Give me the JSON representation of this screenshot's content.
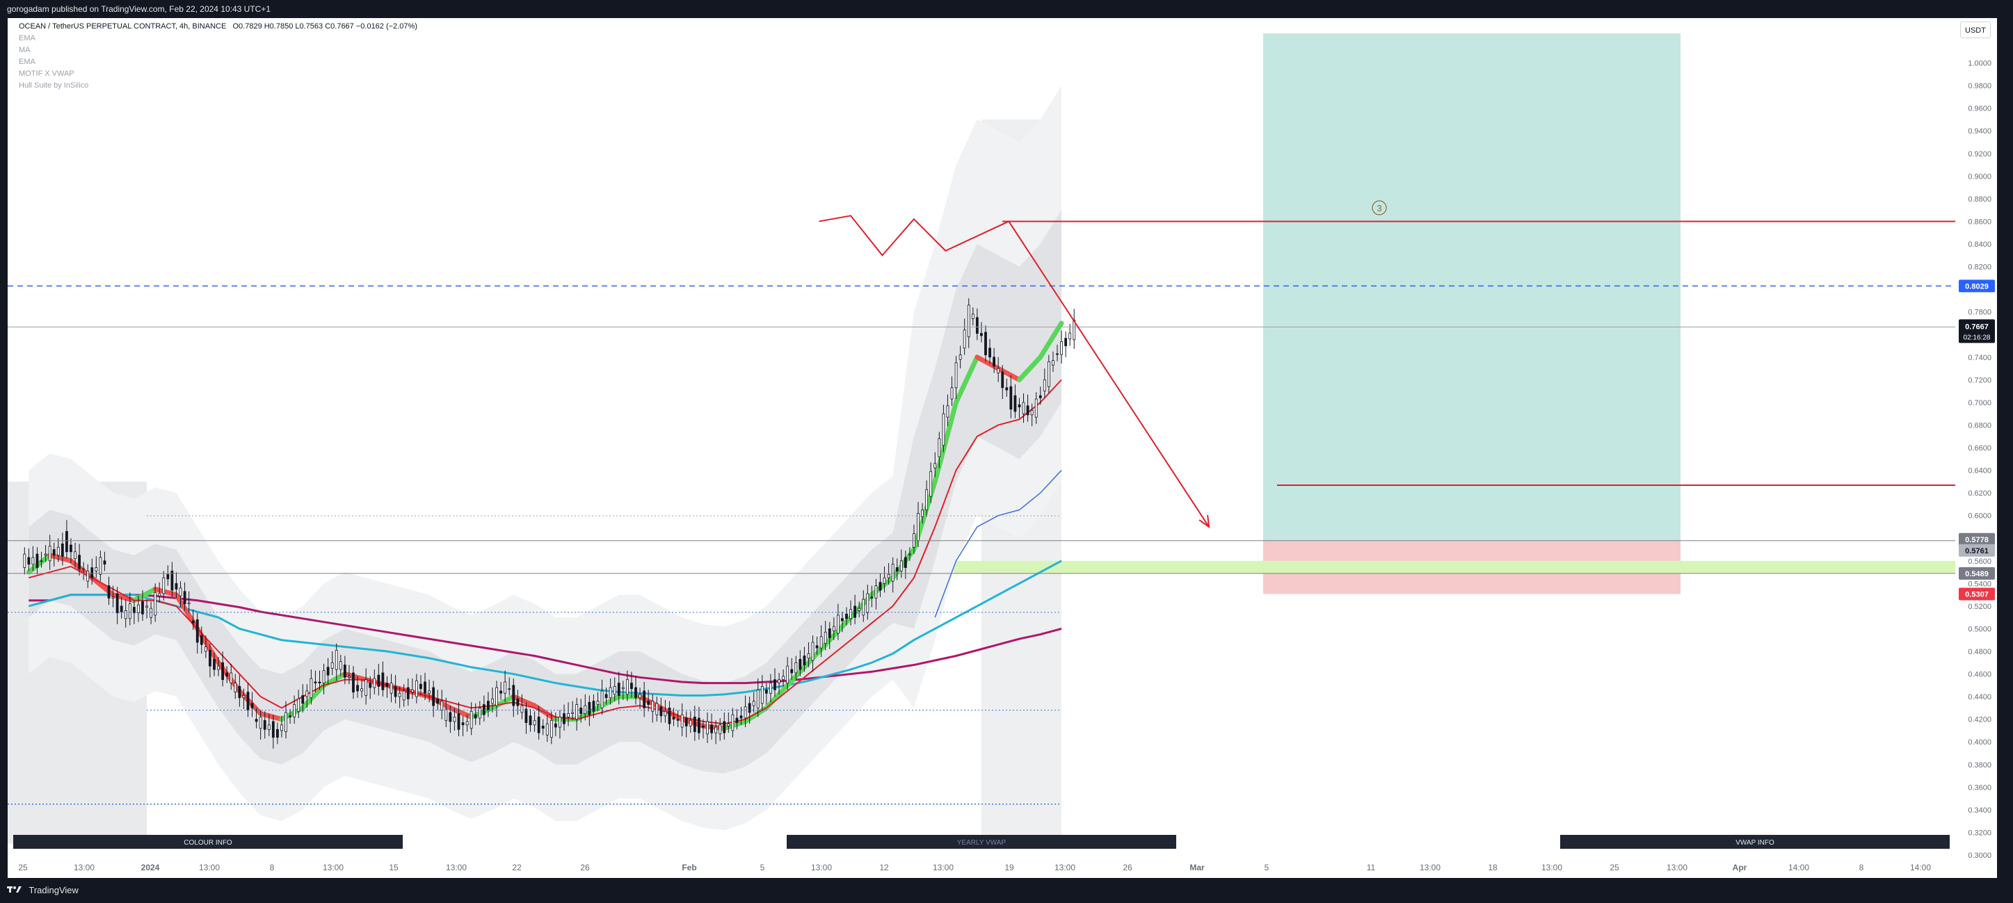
{
  "header": {
    "published": "gorogadam published on TradingView.com, Feb 22, 2024 10:43 UTC+1"
  },
  "legend": {
    "symbol": "OCEAN / TetherUS PERPETUAL CONTRACT, 4h, BINANCE",
    "ohlc": "O0.7829  H0.7850  L0.7563  C0.7667  −0.0162 (−2.07%)",
    "indicators": [
      "EMA",
      "MA",
      "EMA",
      "MOTIF X VWAP",
      "Hull Suite by InSilico"
    ]
  },
  "currency_button": "USDT",
  "footer": {
    "brand": "TradingView"
  },
  "info_bars": [
    "COLOUR INFO",
    "YEARLY VWAP",
    "VWAP INFO"
  ],
  "annotation": "3",
  "price_badges": {
    "upper_dashed": "0.8029",
    "last_price": "0.7667",
    "countdown": "02:16:28",
    "level_1": "0.5778",
    "level_2": "0.5761",
    "level_3": "0.5489",
    "stop": "0.5307"
  },
  "colors": {
    "background": "#131722",
    "up_candle": "#131722",
    "hull_bull": "#5ad65a",
    "hull_bear": "#ef5350",
    "ema_fast": "#e0202a",
    "ema_mid": "#22b4d6",
    "ema_slow": "#b0166a",
    "vwap": "#3d6fd6",
    "take_profit_zone": "#c5e7e1",
    "stop_zone": "#f6c9cb",
    "projection": "#e0202a",
    "dashed_level": "#2962ff"
  },
  "chart_data": {
    "type": "candlestick",
    "symbol": "OCEAN / TetherUS PERPETUAL CONTRACT",
    "timeframe": "4h",
    "exchange": "BINANCE",
    "y_axis": {
      "range": [
        0.3,
        1.02
      ],
      "ticks": [
        "0.3000",
        "0.3200",
        "0.3400",
        "0.3600",
        "0.3800",
        "0.4000",
        "0.4200",
        "0.4400",
        "0.4600",
        "0.4800",
        "0.5000",
        "0.5200",
        "0.5400",
        "0.5600",
        "0.5800",
        "0.6000",
        "0.6200",
        "0.6400",
        "0.6600",
        "0.6800",
        "0.7000",
        "0.7200",
        "0.7400",
        "0.7600",
        "0.7800",
        "0.8000",
        "0.8200",
        "0.8400",
        "0.8600",
        "0.8800",
        "0.9000",
        "0.9200",
        "0.9400",
        "0.9600",
        "0.9800",
        "1.0000"
      ]
    },
    "x_axis": {
      "ticks": [
        "25",
        "13:00",
        "2024",
        "13:00",
        "8",
        "13:00",
        "15",
        "13:00",
        "22",
        "26",
        "Feb",
        "5",
        "13:00",
        "12",
        "13:00",
        "19",
        "13:00",
        "26",
        "Mar",
        "5",
        "11",
        "13:00",
        "18",
        "13:00",
        "25",
        "13:00",
        "Apr",
        "14:00",
        "8",
        "14:00"
      ]
    },
    "price_path": [
      [
        0.56,
        0.56
      ],
      [
        0.565,
        0.57
      ],
      [
        0.58,
        0.55
      ],
      [
        0.545,
        0.56
      ],
      [
        0.535,
        0.51
      ],
      [
        0.515,
        0.52
      ],
      [
        0.51,
        0.55
      ],
      [
        0.545,
        0.52
      ],
      [
        0.51,
        0.47
      ],
      [
        0.47,
        0.455
      ],
      [
        0.45,
        0.43
      ],
      [
        0.42,
        0.41
      ],
      [
        0.405,
        0.43
      ],
      [
        0.43,
        0.455
      ],
      [
        0.45,
        0.475
      ],
      [
        0.47,
        0.445
      ],
      [
        0.445,
        0.455
      ],
      [
        0.455,
        0.44
      ],
      [
        0.44,
        0.45
      ],
      [
        0.45,
        0.43
      ],
      [
        0.425,
        0.415
      ],
      [
        0.415,
        0.43
      ],
      [
        0.43,
        0.45
      ],
      [
        0.45,
        0.42
      ],
      [
        0.42,
        0.41
      ],
      [
        0.41,
        0.425
      ],
      [
        0.425,
        0.43
      ],
      [
        0.43,
        0.445
      ],
      [
        0.445,
        0.45
      ],
      [
        0.445,
        0.43
      ],
      [
        0.43,
        0.42
      ],
      [
        0.42,
        0.415
      ],
      [
        0.415,
        0.41
      ],
      [
        0.41,
        0.42
      ],
      [
        0.42,
        0.44
      ],
      [
        0.44,
        0.455
      ],
      [
        0.455,
        0.47
      ],
      [
        0.47,
        0.49
      ],
      [
        0.49,
        0.51
      ],
      [
        0.51,
        0.52
      ],
      [
        0.52,
        0.545
      ],
      [
        0.545,
        0.56
      ],
      [
        0.56,
        0.62
      ],
      [
        0.62,
        0.7
      ],
      [
        0.7,
        0.78
      ],
      [
        0.78,
        0.74
      ],
      [
        0.74,
        0.7
      ],
      [
        0.7,
        0.69
      ],
      [
        0.69,
        0.74
      ],
      [
        0.74,
        0.7667
      ]
    ],
    "indicators": {
      "hull_suite": [
        0.55,
        0.565,
        0.56,
        0.545,
        0.53,
        0.525,
        0.535,
        0.53,
        0.5,
        0.47,
        0.445,
        0.425,
        0.42,
        0.43,
        0.45,
        0.46,
        0.455,
        0.45,
        0.445,
        0.44,
        0.43,
        0.422,
        0.43,
        0.44,
        0.432,
        0.42,
        0.42,
        0.43,
        0.44,
        0.44,
        0.43,
        0.42,
        0.414,
        0.412,
        0.418,
        0.43,
        0.45,
        0.47,
        0.49,
        0.51,
        0.53,
        0.545,
        0.57,
        0.63,
        0.7,
        0.74,
        0.73,
        0.72,
        0.74,
        0.77
      ],
      "ema_fast": [
        0.545,
        0.55,
        0.555,
        0.545,
        0.535,
        0.525,
        0.525,
        0.52,
        0.5,
        0.48,
        0.46,
        0.44,
        0.43,
        0.44,
        0.45,
        0.455,
        0.455,
        0.45,
        0.445,
        0.44,
        0.435,
        0.43,
        0.432,
        0.435,
        0.43,
        0.422,
        0.42,
        0.425,
        0.43,
        0.432,
        0.428,
        0.422,
        0.418,
        0.416,
        0.42,
        0.43,
        0.445,
        0.46,
        0.475,
        0.49,
        0.505,
        0.52,
        0.545,
        0.59,
        0.64,
        0.67,
        0.68,
        0.685,
        0.7,
        0.72
      ],
      "ema_mid": [
        0.52,
        0.525,
        0.53,
        0.53,
        0.53,
        0.53,
        0.525,
        0.52,
        0.515,
        0.51,
        0.5,
        0.495,
        0.49,
        0.488,
        0.486,
        0.484,
        0.482,
        0.48,
        0.477,
        0.474,
        0.47,
        0.466,
        0.463,
        0.46,
        0.456,
        0.452,
        0.449,
        0.446,
        0.444,
        0.443,
        0.442,
        0.441,
        0.441,
        0.442,
        0.444,
        0.447,
        0.45,
        0.454,
        0.459,
        0.464,
        0.47,
        0.478,
        0.49,
        0.5,
        0.51,
        0.52,
        0.53,
        0.54,
        0.55,
        0.56
      ],
      "ema_slow": [
        0.525,
        0.525,
        0.53,
        0.53,
        0.53,
        0.53,
        0.529,
        0.527,
        0.525,
        0.522,
        0.519,
        0.515,
        0.512,
        0.509,
        0.506,
        0.503,
        0.5,
        0.497,
        0.494,
        0.491,
        0.488,
        0.485,
        0.482,
        0.479,
        0.476,
        0.472,
        0.468,
        0.464,
        0.46,
        0.457,
        0.455,
        0.453,
        0.452,
        0.452,
        0.452,
        0.453,
        0.454,
        0.456,
        0.458,
        0.46,
        0.462,
        0.465,
        0.468,
        0.472,
        0.476,
        0.481,
        0.486,
        0.491,
        0.495,
        0.5
      ]
    },
    "levels": {
      "projection_high": 0.86,
      "dashed_blue": 0.8029,
      "last_price": 0.7667,
      "target": 0.6268,
      "entry_upper": 0.5778,
      "entry_lower": 0.5489,
      "stop": 0.5307,
      "yearly_vwap_upper": 0.5998,
      "yearly_vwap_lower": 0.428
    },
    "projection_path": [
      [
        0.77,
        0.86
      ],
      [
        0.8,
        0.865
      ],
      [
        0.83,
        0.83
      ],
      [
        0.86,
        0.862
      ],
      [
        0.89,
        0.834
      ],
      [
        0.95,
        0.86
      ],
      [
        1.14,
        0.59
      ]
    ],
    "position_tool": {
      "tp_top": 1.02,
      "entry": 0.5778,
      "stop": 0.5307
    }
  }
}
